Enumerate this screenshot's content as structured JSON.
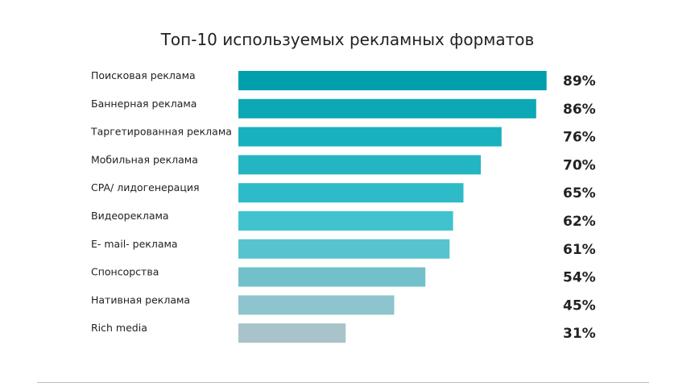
{
  "chart_data": {
    "type": "bar",
    "orientation": "horizontal",
    "title": "Топ-10 используемых рекламных форматов",
    "categories": [
      "Поисковая реклама",
      "Баннерная реклама",
      "Таргетированная реклама",
      "Мобильная реклама",
      "CPA/ лидогенерация",
      "Видеореклама",
      "E- mail- реклама",
      "Спонсорства",
      "Нативная реклама",
      "Rich media"
    ],
    "values": [
      89,
      86,
      76,
      70,
      65,
      62,
      61,
      54,
      45,
      31
    ],
    "value_labels": [
      "89%",
      "86%",
      "76%",
      "70%",
      "65%",
      "62%",
      "61%",
      "54%",
      "45%",
      "31%"
    ],
    "bar_colors": [
      "#009fae",
      "#0ca8b6",
      "#18b1bd",
      "#24b5c2",
      "#2ebbc7",
      "#40c3cf",
      "#56c3cf",
      "#72c0ca",
      "#8ec4cd",
      "#a8c4ca"
    ],
    "grid": false,
    "legend": "none"
  }
}
